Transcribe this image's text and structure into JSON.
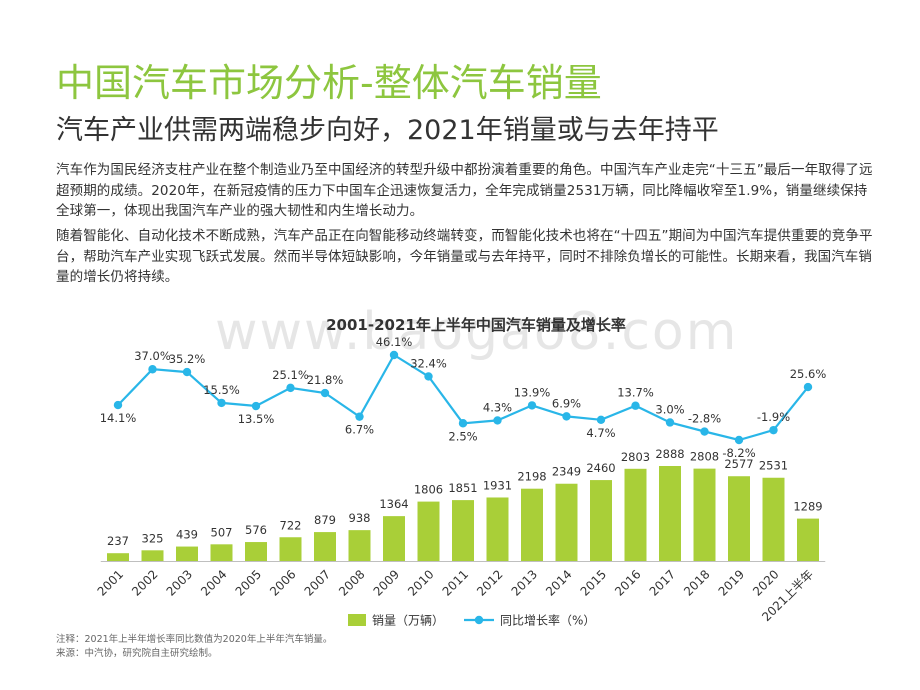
{
  "header": {
    "title": "中国汽车市场分析-整体汽车销量",
    "subtitle": "汽车产业供需两端稳步向好，2021年销量或与去年持平"
  },
  "body": {
    "paragraph1": "汽车作为国民经济支柱产业在整个制造业乃至中国经济的转型升级中都扮演着重要的角色。中国汽车产业走完“十三五”最后一年取得了远超预期的成绩。2020年，在新冠疫情的压力下中国车企迅速恢复活力，全年完成销量2531万辆，同比降幅收窄至1.9%，销量继续保持全球第一，体现出我国汽车产业的强大韧性和内生增长动力。",
    "paragraph2": "随着智能化、自动化技术不断成熟，汽车产品正在向智能移动终端转变，而智能化技术也将在“十四五”期间为中国汽车提供重要的竞争平台，帮助汽车产业实现飞跃式发展。然而半导体短缺影响，今年销量或与去年持平，同时不排除负增长的可能性。长期来看，我国汽车销量的增长仍将持续。"
  },
  "watermark": "www.baogao8.com",
  "footer": {
    "note": "注释：2021年上半年增长率同比数值为2020年上半年汽车销量。",
    "source": "来源：中汽协，研究院自主研究绘制。"
  },
  "colors": {
    "title": "#8dc63f",
    "bar": "#a9cf38",
    "line": "#29b6e8"
  },
  "chart_data": {
    "type": "bar",
    "title": "2001-2021年上半年中国汽车销量及增长率",
    "categories": [
      "2001",
      "2002",
      "2003",
      "2004",
      "2005",
      "2006",
      "2007",
      "2008",
      "2009",
      "2010",
      "2011",
      "2012",
      "2013",
      "2014",
      "2015",
      "2016",
      "2017",
      "2018",
      "2019",
      "2020",
      "2021上半年"
    ],
    "series": [
      {
        "name": "销量（万辆）",
        "type": "bar",
        "values": [
          237,
          325,
          439,
          507,
          576,
          722,
          879,
          938,
          1364,
          1806,
          1851,
          1931,
          2198,
          2349,
          2460,
          2803,
          2888,
          2808,
          2577,
          2531,
          1289
        ],
        "labels": [
          "237",
          "325",
          "439",
          "507",
          "576",
          "722",
          "879",
          "938",
          "1364",
          "1806",
          "1851",
          "1931",
          "2198",
          "2349",
          "2460",
          "2803",
          "2888",
          "2808",
          "2577",
          "2531",
          "1289"
        ]
      },
      {
        "name": "同比增长率（%）",
        "type": "line",
        "values": [
          14.1,
          37.0,
          35.2,
          15.5,
          13.5,
          25.1,
          21.8,
          6.7,
          46.1,
          32.4,
          2.5,
          4.3,
          13.9,
          6.9,
          4.7,
          13.7,
          3.0,
          -2.8,
          -8.2,
          -1.9,
          25.6
        ],
        "labels": [
          "14.1%",
          "37.0%",
          "35.2%",
          "15.5%",
          "13.5%",
          "25.1%",
          "21.8%",
          "6.7%",
          "46.1%",
          "32.4%",
          "2.5%",
          "4.3%",
          "13.9%",
          "6.9%",
          "4.7%",
          "13.7%",
          "3.0%",
          "-2.8%",
          "-8.2%",
          "-1.9%",
          "25.6%"
        ]
      }
    ],
    "bar_ylim": [
      0,
      3000
    ],
    "line_ylim": [
      -10,
      50
    ],
    "legend": {
      "position": "bottom-center"
    }
  }
}
